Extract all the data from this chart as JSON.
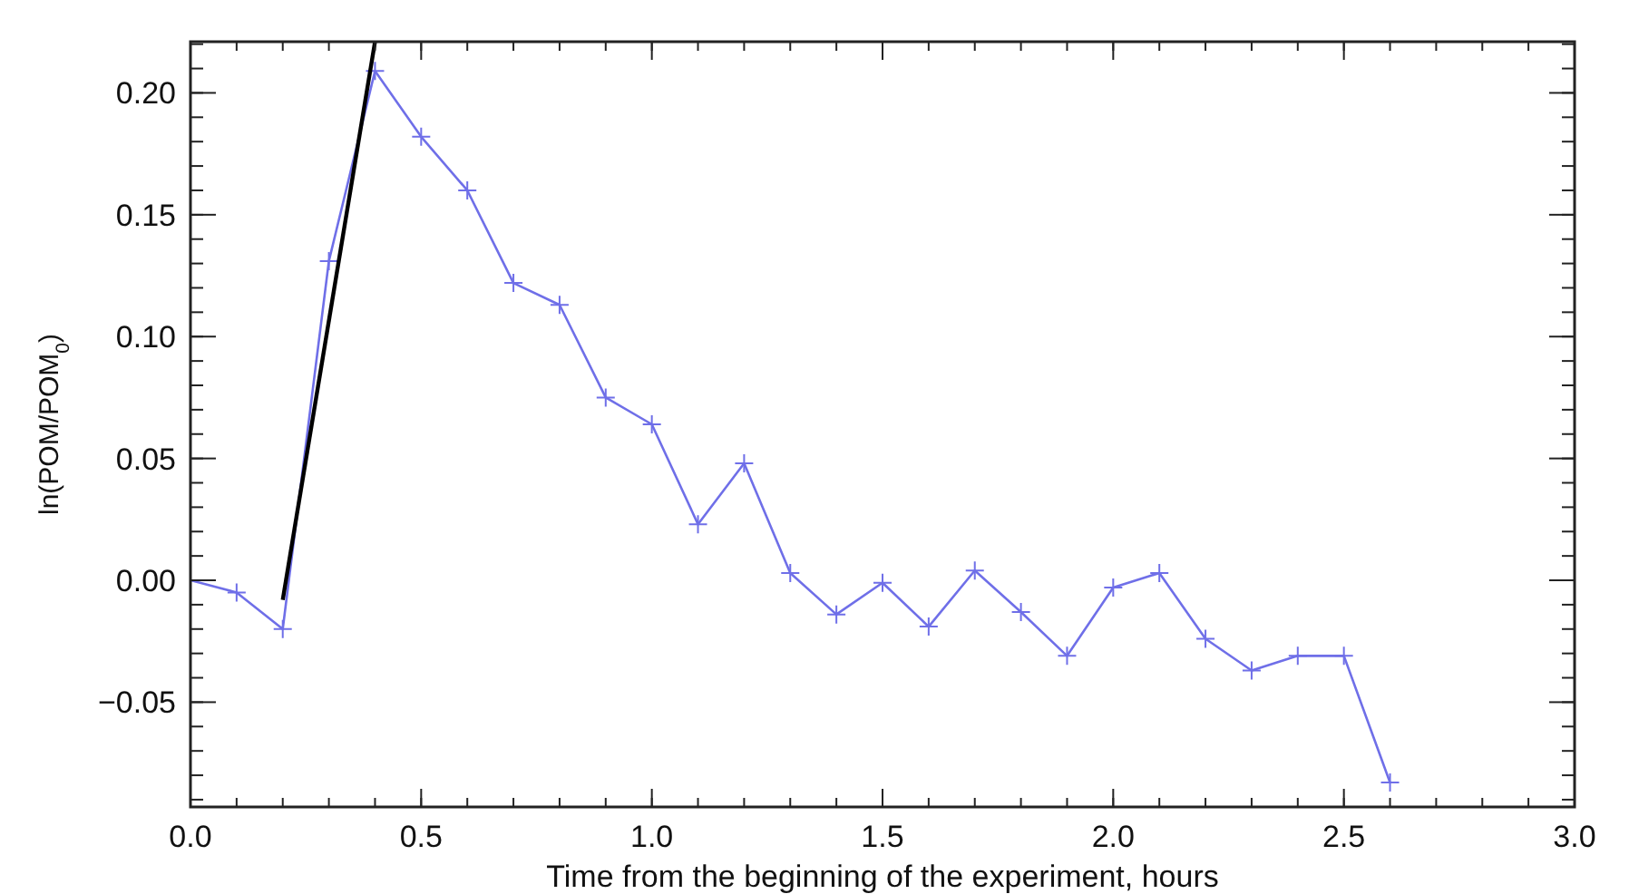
{
  "chart_data": {
    "type": "line",
    "xlabel": "Time from the beginning of the experiment, hours",
    "ylabel": "ln(POM/POM$_{0}$)",
    "xlim": [
      0,
      3
    ],
    "xticks": [
      {
        "value": 0,
        "label": "0.0"
      },
      {
        "value": 0.5,
        "label": "0.5"
      },
      {
        "value": 1,
        "label": "1.0"
      },
      {
        "value": 1.5,
        "label": "1.5"
      },
      {
        "value": 2,
        "label": "2.0"
      },
      {
        "value": 2.5,
        "label": "2.5"
      },
      {
        "value": 3,
        "label": "3.0"
      }
    ],
    "ylim": [
      -0.093,
      0.221
    ],
    "yticks": [
      {
        "value": -0.05,
        "label": "−0.05"
      },
      {
        "value": 0,
        "label": "0.00"
      },
      {
        "value": 0.05,
        "label": "0.05"
      },
      {
        "value": 0.1,
        "label": "0.10"
      },
      {
        "value": 0.15,
        "label": "0.15"
      },
      {
        "value": 0.2,
        "label": "0.20"
      }
    ],
    "grid": false,
    "series": [
      {
        "color": "#6f6fe8",
        "marker": "cross",
        "x": [
          0,
          0.1,
          0.2,
          0.3,
          0.4,
          0.5,
          0.6,
          0.7,
          0.8,
          0.9,
          1.0,
          1.1,
          1.2,
          1.3,
          1.4,
          1.5,
          1.6,
          1.7,
          1.8,
          1.9,
          2.0,
          2.1,
          2.2,
          2.3,
          2.4,
          2.5,
          2.6
        ],
        "values": [
          0.0,
          -0.005,
          -0.02,
          0.131,
          0.209,
          0.182,
          0.16,
          0.122,
          0.113,
          0.075,
          0.064,
          0.023,
          0.048,
          0.003,
          -0.014,
          -0.001,
          -0.019,
          0.004,
          -0.013,
          -0.031,
          -0.003,
          0.003,
          -0.024,
          -0.037,
          -0.031,
          -0.031,
          -0.083
        ]
      },
      {
        "color": "#000000",
        "marker": "none",
        "x": [
          0.2,
          0.4
        ],
        "values": [
          -0.008,
          0.221
        ]
      }
    ]
  }
}
